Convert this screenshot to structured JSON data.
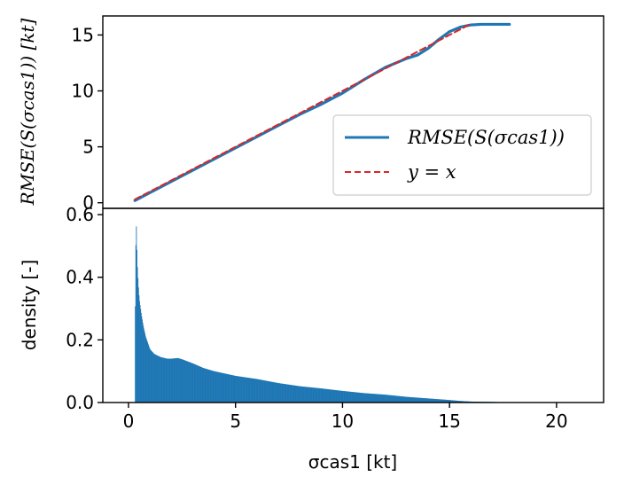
{
  "chart_data": [
    {
      "type": "line",
      "ylabel": "RMSE(S(σcas1)) [kt]",
      "xlim": [
        -1.2,
        22.2
      ],
      "ylim": [
        -0.5,
        16.7
      ],
      "yticks": [
        0,
        5,
        10,
        15
      ],
      "grid": false,
      "legend": "center-right",
      "series": [
        {
          "name": "RMSE(S(σcas1))",
          "color": "#1f77b4",
          "style": "solid",
          "x": [
            0.3,
            1,
            2,
            3,
            4,
            5,
            6,
            7,
            8,
            9,
            10,
            11,
            12,
            13,
            13.5,
            14,
            14.5,
            15,
            15.5,
            16,
            16.5,
            17,
            17.8
          ],
          "y": [
            0.2,
            0.9,
            1.9,
            2.9,
            3.9,
            4.9,
            5.9,
            6.9,
            7.9,
            8.8,
            9.8,
            11.0,
            12.1,
            12.9,
            13.2,
            13.8,
            14.6,
            15.3,
            15.7,
            15.9,
            15.95,
            15.95,
            15.95
          ]
        },
        {
          "name": "y = x",
          "color": "#d62728",
          "style": "dashed",
          "x": [
            0.3,
            16
          ],
          "y": [
            0.3,
            16
          ]
        }
      ]
    },
    {
      "type": "bar",
      "xlabel": "σcas1 [kt]",
      "ylabel": "density [-]",
      "xlim": [
        -1.2,
        22.2
      ],
      "ylim": [
        0,
        0.62
      ],
      "xticks": [
        0,
        5,
        10,
        15,
        20
      ],
      "yticks": [
        0.0,
        0.2,
        0.4,
        0.6
      ],
      "grid": false,
      "color": "#1f77b4",
      "histogram": {
        "x": [
          0.3,
          0.35,
          0.4,
          0.45,
          0.5,
          0.6,
          0.7,
          0.8,
          0.9,
          1.0,
          1.2,
          1.5,
          1.8,
          2.0,
          2.3,
          2.5,
          3.0,
          3.5,
          4.0,
          5.0,
          6.0,
          7.0,
          8.0,
          9.0,
          10.0,
          11.0,
          12.0,
          13.0,
          14.0,
          15.0,
          15.5,
          16.0,
          17.0,
          18.0
        ],
        "y": [
          0.21,
          0.6,
          0.45,
          0.38,
          0.33,
          0.28,
          0.24,
          0.21,
          0.19,
          0.17,
          0.155,
          0.145,
          0.14,
          0.14,
          0.142,
          0.138,
          0.125,
          0.11,
          0.1,
          0.085,
          0.075,
          0.062,
          0.052,
          0.045,
          0.037,
          0.03,
          0.025,
          0.018,
          0.013,
          0.008,
          0.005,
          0.003,
          0.002,
          0.0
        ]
      }
    }
  ]
}
